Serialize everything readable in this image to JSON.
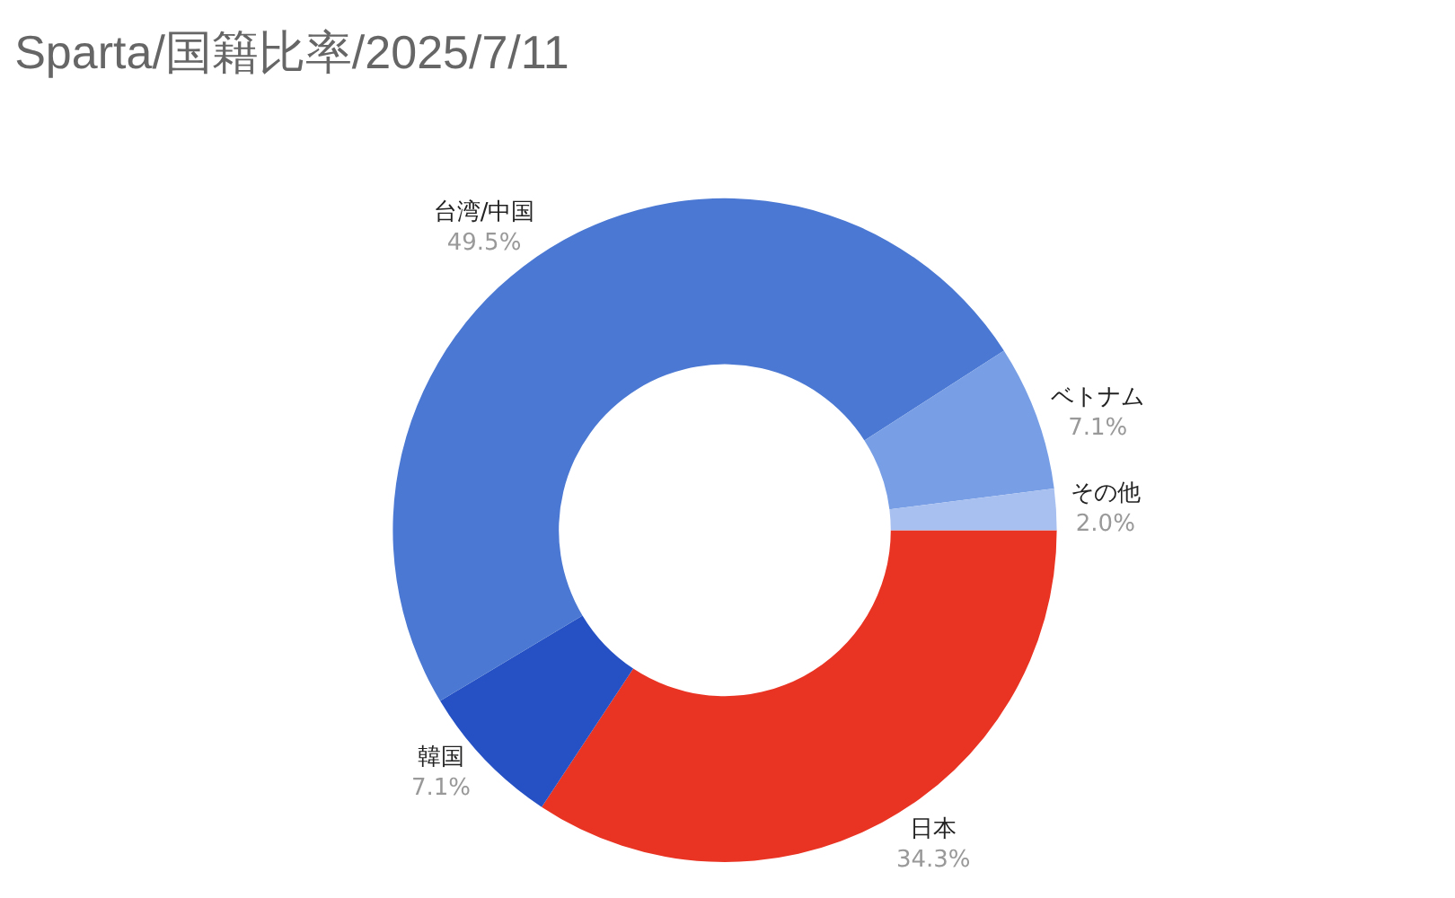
{
  "chart_data": {
    "type": "donut",
    "title": "Sparta/国籍比率/2025/7/11",
    "categories": [
      "日本",
      "韓国",
      "台湾/中国",
      "ベトナム",
      "その他"
    ],
    "values": [
      34.3,
      7.1,
      49.5,
      7.1,
      2.0
    ],
    "colors": [
      "#e93323",
      "#2551c4",
      "#4a78d2",
      "#789fe6",
      "#a8c0f0"
    ],
    "value_labels": [
      "34.3%",
      "7.1%",
      "49.5%",
      "7.1%",
      "2.0%"
    ],
    "legend": false
  }
}
